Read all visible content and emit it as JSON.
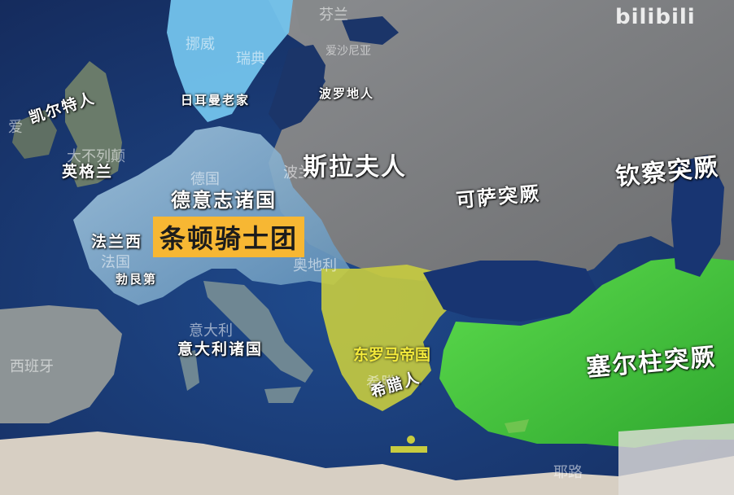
{
  "labels": {
    "teutonic_order": "条顿骑士团",
    "byzantine_empire": "东罗马帝国",
    "slavs": "斯拉夫人",
    "khazar_turks": "可萨突厥",
    "kipchak_turks": "钦察突厥",
    "seljuk_turks": "塞尔柱突厥",
    "celts": "凯尔特人",
    "english": "英格兰",
    "jutes_danes": "日耳曼老家",
    "baltic_peoples": "波罗地人",
    "german_states": "德意志诸国",
    "france": "法兰西",
    "burgundy": "勃艮第",
    "italian_states": "意大利诸国",
    "greeks": "希腊人"
  },
  "basemap_labels": {
    "sweden": "瑞典",
    "norway": "挪威",
    "finland": "芬兰",
    "estonia": "爱沙尼亚",
    "ireland": "爱",
    "britain": "大不列颠",
    "germany": "德国",
    "poland": "波兰",
    "austria": "奥地利",
    "france_modern": "法国",
    "italy": "意大利",
    "spain": "西班牙",
    "greece": "希腊",
    "jordan": "耶路"
  },
  "watermark": "bilibili",
  "colors": {
    "sea": "#1d3a78",
    "land_grey": "#8c8d8f",
    "germany_highlight": "#8fb6d4",
    "scandinavia_highlight": "#6fc2ec",
    "byzantine_yellow": "#cfd03d",
    "seljuk_green": "#3fc23a",
    "teutonic_badge": "#f7b733",
    "byzantine_text": "#f3ea3c"
  }
}
